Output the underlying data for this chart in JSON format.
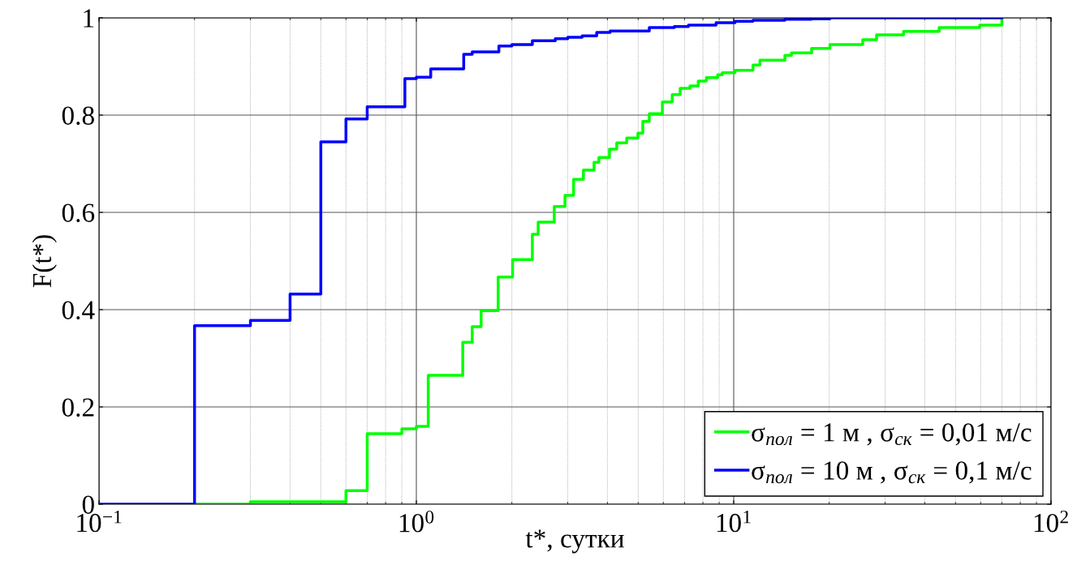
{
  "chart_data": {
    "type": "step",
    "xlabel": "t*, сутки",
    "ylabel": "F(t*)",
    "log": "x",
    "grid": true,
    "legend": "bottom right",
    "xlim": [
      0.1,
      100
    ],
    "xticks": [
      {
        "value": 0.1,
        "label": "10$^{−1}$"
      },
      {
        "value": 1,
        "label": "10$^{0}$"
      },
      {
        "value": 10,
        "label": "10$^{1}$"
      },
      {
        "value": 100,
        "label": "10$^{2}$"
      }
    ],
    "ylim": [
      0,
      1
    ],
    "yticks": [
      0,
      0.2,
      0.4,
      0.6,
      0.8,
      1
    ],
    "series": [
      {
        "name": "σ$_{пол}$ = 1 м , σ$_{ск}$ = 0,01 м/с",
        "color": "#00ff00",
        "x": [
          0.2,
          0.3,
          0.6,
          0.7,
          0.9,
          1.0,
          1.09,
          1.4,
          1.5,
          1.6,
          1.81,
          2.01,
          2.32,
          2.42,
          2.72,
          2.94,
          3.13,
          3.36,
          3.63,
          3.76,
          4.06,
          4.28,
          4.6,
          4.99,
          5.17,
          5.42,
          5.96,
          6.4,
          6.78,
          7.28,
          7.73,
          8.2,
          8.9,
          9.2,
          10.1,
          11.5,
          12.1,
          14.5,
          15.2,
          17.6,
          20.1,
          25.5,
          28.2,
          34.3,
          44.4,
          59.6,
          70
        ],
        "values": [
          0,
          0.005,
          0.028,
          0.145,
          0.155,
          0.16,
          0.265,
          0.333,
          0.365,
          0.398,
          0.467,
          0.503,
          0.555,
          0.58,
          0.612,
          0.635,
          0.668,
          0.687,
          0.703,
          0.713,
          0.73,
          0.743,
          0.753,
          0.763,
          0.787,
          0.803,
          0.827,
          0.842,
          0.855,
          0.86,
          0.87,
          0.877,
          0.883,
          0.887,
          0.892,
          0.903,
          0.913,
          0.923,
          0.928,
          0.937,
          0.945,
          0.955,
          0.965,
          0.972,
          0.98,
          0.985,
          1.0
        ]
      },
      {
        "name": "σ$_{пол}$ = 10 м , σ$_{ск}$ = 0,1 м/с",
        "color": "#0000ff",
        "x": [
          0.1,
          0.2,
          0.3,
          0.4,
          0.5,
          0.6,
          0.7,
          0.92,
          1.0,
          1.11,
          1.41,
          1.5,
          1.82,
          2.0,
          2.32,
          2.74,
          3.0,
          3.33,
          3.7,
          4.08,
          5.42,
          6.5,
          7.2,
          8.8,
          10.1,
          11.5,
          14.5,
          17.6,
          20.1,
          70
        ],
        "values": [
          0,
          0.367,
          0.378,
          0.432,
          0.745,
          0.792,
          0.817,
          0.875,
          0.878,
          0.895,
          0.925,
          0.93,
          0.942,
          0.945,
          0.953,
          0.957,
          0.96,
          0.963,
          0.97,
          0.973,
          0.98,
          0.982,
          0.985,
          0.99,
          0.993,
          0.995,
          0.997,
          0.998,
          1.0,
          1.0
        ]
      }
    ]
  }
}
